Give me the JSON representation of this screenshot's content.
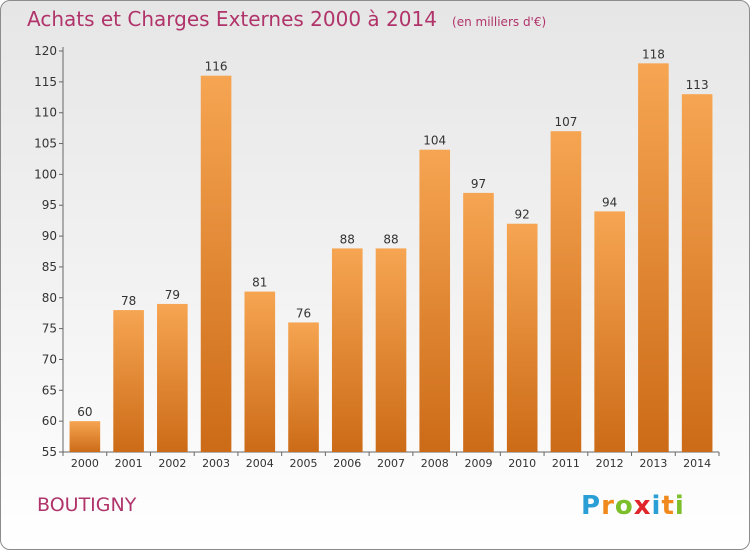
{
  "header": {
    "title": "Achats et Charges Externes 2000 à 2014",
    "subtitle": "(en milliers d'€)"
  },
  "footer": {
    "commune": "BOUTIGNY",
    "logo_letters": [
      {
        "char": "P",
        "color": "#2a9fd6"
      },
      {
        "char": "r",
        "color": "#f08a1e"
      },
      {
        "char": "o",
        "color": "#7cbf2a"
      },
      {
        "char": "x",
        "color": "#e0262b"
      },
      {
        "char": "i",
        "color": "#2a9fd6"
      },
      {
        "char": "t",
        "color": "#f08a1e"
      },
      {
        "char": "i",
        "color": "#7cbf2a"
      }
    ]
  },
  "colors": {
    "bar_top": "#f6a552",
    "bar_bottom": "#cc6b17",
    "accent": "#b0346a"
  },
  "chart_data": {
    "type": "bar",
    "categories": [
      "2000",
      "2001",
      "2002",
      "2003",
      "2004",
      "2005",
      "2006",
      "2007",
      "2008",
      "2009",
      "2010",
      "2011",
      "2012",
      "2013",
      "2014"
    ],
    "values": [
      60,
      78,
      79,
      116,
      81,
      76,
      88,
      88,
      104,
      97,
      92,
      107,
      94,
      118,
      113
    ],
    "title": "Achats et Charges Externes 2000 à 2014",
    "xlabel": "",
    "ylabel": "",
    "ylim": [
      55,
      120
    ],
    "yticks": [
      55,
      60,
      65,
      70,
      75,
      80,
      85,
      90,
      95,
      100,
      105,
      110,
      115,
      120
    ],
    "grid": false,
    "legend": "none"
  }
}
